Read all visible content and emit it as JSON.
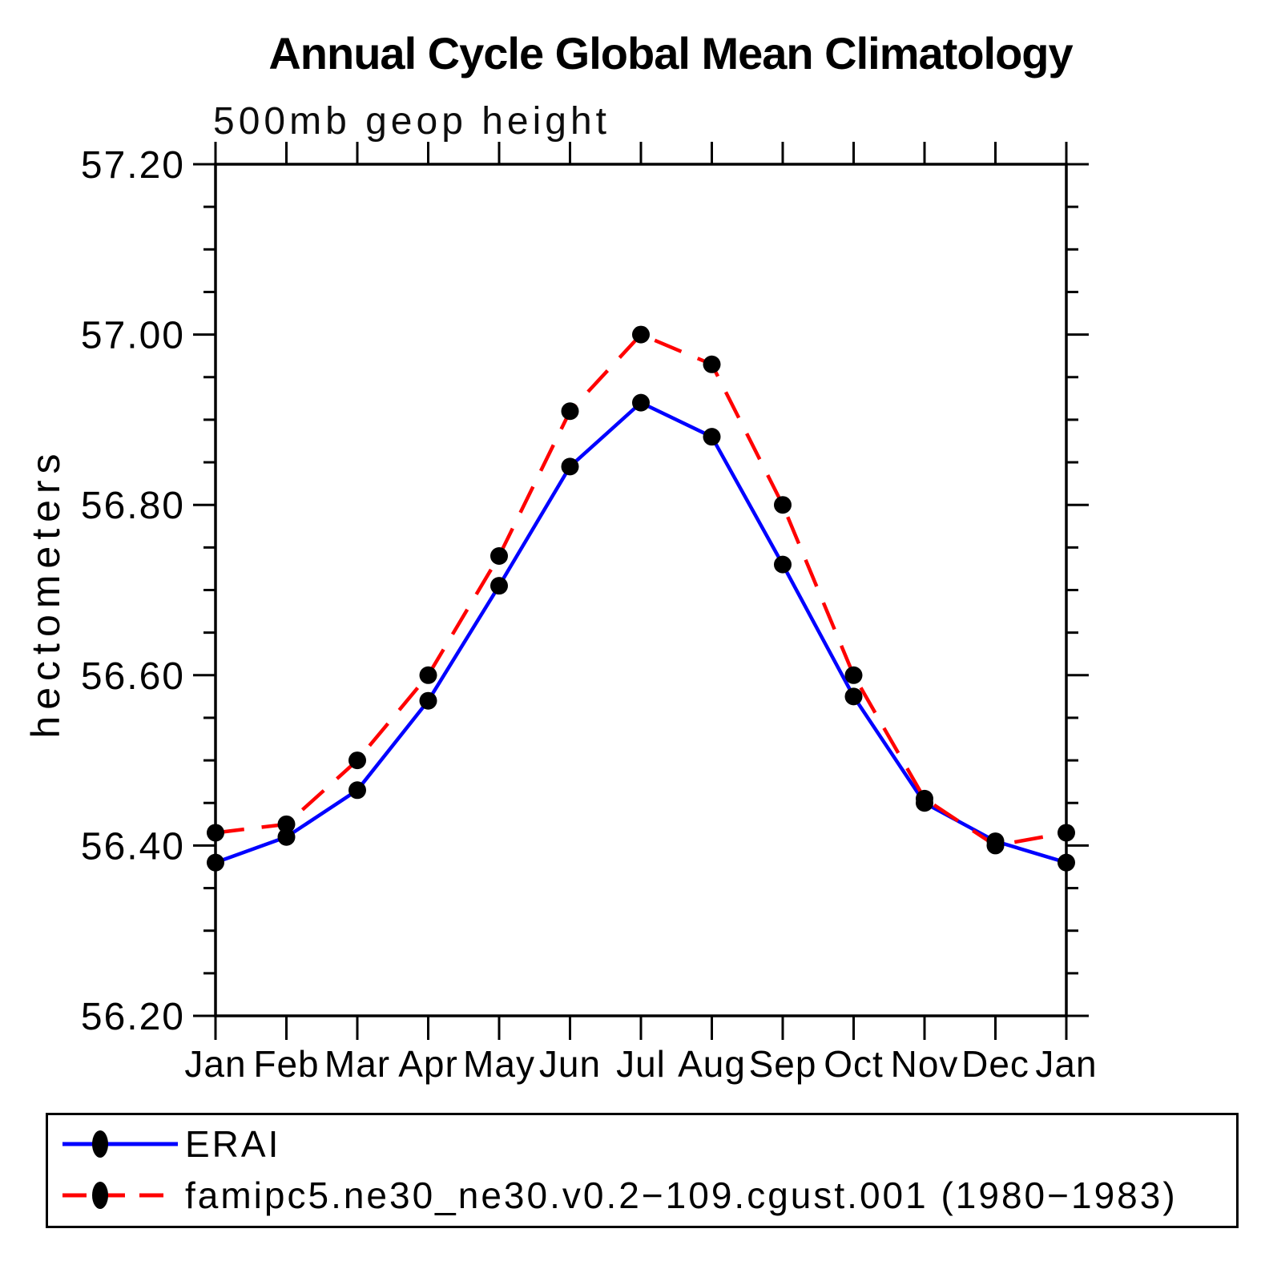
{
  "chart_data": {
    "type": "line",
    "title": "Annual Cycle Global Mean Climatology",
    "subtitle": "500mb geop height",
    "ylabel": "hectometers",
    "xlabel": "",
    "categories": [
      "Jan",
      "Feb",
      "Mar",
      "Apr",
      "May",
      "Jun",
      "Jul",
      "Aug",
      "Sep",
      "Oct",
      "Nov",
      "Dec",
      "Jan"
    ],
    "ylim": [
      56.2,
      57.2
    ],
    "ytick_major": 0.2,
    "ytick_minor": 0.05,
    "ytick_label_format": "2dp",
    "grid": "off",
    "axis_color": "#000000",
    "legend_position": "bottom-left-box",
    "series": [
      {
        "name": "ERAI",
        "color": "#0000ff",
        "style": "solid",
        "marker": "filled-circle",
        "marker_color": "#000000",
        "values": [
          56.38,
          56.41,
          56.465,
          56.57,
          56.705,
          56.845,
          56.92,
          56.88,
          56.73,
          56.575,
          56.45,
          56.405,
          56.38
        ]
      },
      {
        "name": "famipc5.ne30_ne30.v0.2−109.cgust.001 (1980−1983)",
        "color": "#ff0000",
        "style": "dashed",
        "marker": "filled-circle",
        "marker_color": "#000000",
        "values": [
          56.415,
          56.425,
          56.5,
          56.6,
          56.74,
          56.91,
          57.0,
          56.965,
          56.8,
          56.6,
          56.455,
          56.4,
          56.415
        ]
      }
    ]
  }
}
